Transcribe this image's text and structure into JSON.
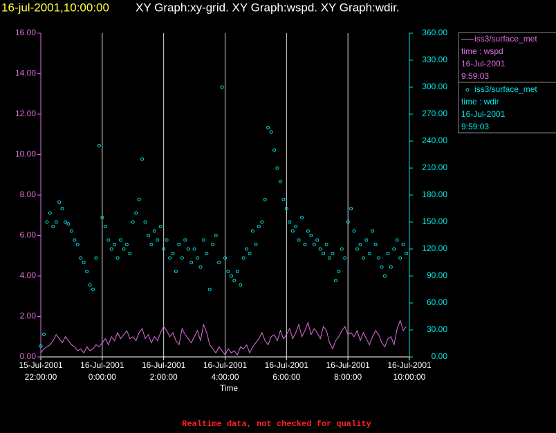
{
  "chart_data": {
    "type": "line+scatter",
    "title": "16-jul-2001,10:00:00",
    "subtitle": "XY Graph:xy-grid.  XY Graph:wspd.  XY Graph:wdir.",
    "x_label": "Time",
    "footer": "Realtime data, not checked for quality",
    "xlim": [
      "2001-07-15T22:00",
      "2001-07-16T10:00"
    ],
    "xticks": [
      {
        "value": "2001-07-15T22:00",
        "label": [
          "15-Jul-2001",
          "22:00:00"
        ]
      },
      {
        "value": "2001-07-16T00:00",
        "label": [
          "16-Jul-2001",
          "0:00:00"
        ]
      },
      {
        "value": "2001-07-16T02:00",
        "label": [
          "16-Jul-2001",
          "2:00:00"
        ]
      },
      {
        "value": "2001-07-16T04:00",
        "label": [
          "16-Jul-2001",
          "4:00:00"
        ]
      },
      {
        "value": "2001-07-16T06:00",
        "label": [
          "16-Jul-2001",
          "6:00:00"
        ]
      },
      {
        "value": "2001-07-16T08:00",
        "label": [
          "16-Jul-2001",
          "8:00:00"
        ]
      },
      {
        "value": "2001-07-16T10:00",
        "label": [
          "16-Jul-2001",
          "10:00:00"
        ]
      }
    ],
    "xgrid": true,
    "ylim": [
      0,
      16
    ],
    "yticks": [
      {
        "value": 0,
        "label": "0.00"
      },
      {
        "value": 2,
        "label": "2.00"
      },
      {
        "value": 4,
        "label": "4.00"
      },
      {
        "value": 6,
        "label": "6.00"
      },
      {
        "value": 8,
        "label": "8.00"
      },
      {
        "value": 10,
        "label": "10.00"
      },
      {
        "value": 12,
        "label": "12.00"
      },
      {
        "value": 14,
        "label": "14.00"
      },
      {
        "value": 16,
        "label": "16.00"
      }
    ],
    "y2lim": [
      0,
      360
    ],
    "y2ticks": [
      {
        "value": 0,
        "label": "0.00"
      },
      {
        "value": 30,
        "label": "30.00"
      },
      {
        "value": 60,
        "label": "60.00"
      },
      {
        "value": 90,
        "label": "90.00"
      },
      {
        "value": 120,
        "label": "120.00"
      },
      {
        "value": 150,
        "label": "150.00"
      },
      {
        "value": 180,
        "label": "180.00"
      },
      {
        "value": 210,
        "label": "210.00"
      },
      {
        "value": 240,
        "label": "240.00"
      },
      {
        "value": 270,
        "label": "270.00"
      },
      {
        "value": 300,
        "label": "300.00"
      },
      {
        "value": 330,
        "label": "330.00"
      },
      {
        "value": 360,
        "label": "360.00"
      }
    ],
    "x": [
      "2001-07-15T22:00",
      "2001-07-15T22:06",
      "2001-07-15T22:12",
      "2001-07-15T22:18",
      "2001-07-15T22:24",
      "2001-07-15T22:30",
      "2001-07-15T22:36",
      "2001-07-15T22:42",
      "2001-07-15T22:48",
      "2001-07-15T22:54",
      "2001-07-15T23:00",
      "2001-07-15T23:06",
      "2001-07-15T23:12",
      "2001-07-15T23:18",
      "2001-07-15T23:24",
      "2001-07-15T23:30",
      "2001-07-15T23:36",
      "2001-07-15T23:42",
      "2001-07-15T23:48",
      "2001-07-15T23:54",
      "2001-07-16T00:00",
      "2001-07-16T00:06",
      "2001-07-16T00:12",
      "2001-07-16T00:18",
      "2001-07-16T00:24",
      "2001-07-16T00:30",
      "2001-07-16T00:36",
      "2001-07-16T00:42",
      "2001-07-16T00:48",
      "2001-07-16T00:54",
      "2001-07-16T01:00",
      "2001-07-16T01:06",
      "2001-07-16T01:12",
      "2001-07-16T01:18",
      "2001-07-16T01:24",
      "2001-07-16T01:30",
      "2001-07-16T01:36",
      "2001-07-16T01:42",
      "2001-07-16T01:48",
      "2001-07-16T01:54",
      "2001-07-16T02:00",
      "2001-07-16T02:06",
      "2001-07-16T02:12",
      "2001-07-16T02:18",
      "2001-07-16T02:24",
      "2001-07-16T02:30",
      "2001-07-16T02:36",
      "2001-07-16T02:42",
      "2001-07-16T02:48",
      "2001-07-16T02:54",
      "2001-07-16T03:00",
      "2001-07-16T03:06",
      "2001-07-16T03:12",
      "2001-07-16T03:18",
      "2001-07-16T03:24",
      "2001-07-16T03:30",
      "2001-07-16T03:36",
      "2001-07-16T03:42",
      "2001-07-16T03:48",
      "2001-07-16T03:54",
      "2001-07-16T04:00",
      "2001-07-16T04:06",
      "2001-07-16T04:12",
      "2001-07-16T04:18",
      "2001-07-16T04:24",
      "2001-07-16T04:30",
      "2001-07-16T04:36",
      "2001-07-16T04:42",
      "2001-07-16T04:48",
      "2001-07-16T04:54",
      "2001-07-16T05:00",
      "2001-07-16T05:06",
      "2001-07-16T05:12",
      "2001-07-16T05:18",
      "2001-07-16T05:24",
      "2001-07-16T05:30",
      "2001-07-16T05:36",
      "2001-07-16T05:42",
      "2001-07-16T05:48",
      "2001-07-16T05:54",
      "2001-07-16T06:00",
      "2001-07-16T06:06",
      "2001-07-16T06:12",
      "2001-07-16T06:18",
      "2001-07-16T06:24",
      "2001-07-16T06:30",
      "2001-07-16T06:36",
      "2001-07-16T06:42",
      "2001-07-16T06:48",
      "2001-07-16T06:54",
      "2001-07-16T07:00",
      "2001-07-16T07:06",
      "2001-07-16T07:12",
      "2001-07-16T07:18",
      "2001-07-16T07:24",
      "2001-07-16T07:30",
      "2001-07-16T07:36",
      "2001-07-16T07:42",
      "2001-07-16T07:48",
      "2001-07-16T07:54",
      "2001-07-16T08:00",
      "2001-07-16T08:06",
      "2001-07-16T08:12",
      "2001-07-16T08:18",
      "2001-07-16T08:24",
      "2001-07-16T08:30",
      "2001-07-16T08:36",
      "2001-07-16T08:42",
      "2001-07-16T08:48",
      "2001-07-16T08:54",
      "2001-07-16T09:00",
      "2001-07-16T09:06",
      "2001-07-16T09:12",
      "2001-07-16T09:18",
      "2001-07-16T09:24",
      "2001-07-16T09:30",
      "2001-07-16T09:36",
      "2001-07-16T09:42",
      "2001-07-16T09:48",
      "2001-07-16T09:54"
    ],
    "series": [
      {
        "name": "iss3/surface_met",
        "legend_lines": [
          "time : wspd",
          "16-Jul-2001",
          "9:59:03"
        ],
        "type": "line",
        "color": "#e070e0",
        "values": [
          0.2,
          0.4,
          0.5,
          0.6,
          0.8,
          1.1,
          0.9,
          0.7,
          1.0,
          0.8,
          0.6,
          0.5,
          0.3,
          0.4,
          0.2,
          0.5,
          0.3,
          0.4,
          0.6,
          0.5,
          0.7,
          0.9,
          0.6,
          1.0,
          0.8,
          1.2,
          0.9,
          1.1,
          1.3,
          0.9,
          1.0,
          0.8,
          1.2,
          1.4,
          0.9,
          1.1,
          0.7,
          1.0,
          0.8,
          1.2,
          1.5,
          1.3,
          1.0,
          1.2,
          0.8,
          0.6,
          1.4,
          1.1,
          0.9,
          0.7,
          1.0,
          1.3,
          0.8,
          1.6,
          1.2,
          0.6,
          0.4,
          0.2,
          0.5,
          0.3,
          0.1,
          0.4,
          0.2,
          0.3,
          0.1,
          0.5,
          0.4,
          0.6,
          0.2,
          0.5,
          0.7,
          0.9,
          1.2,
          0.8,
          0.6,
          1.0,
          1.1,
          0.8,
          1.3,
          0.9,
          1.1,
          1.4,
          0.9,
          1.2,
          1.6,
          1.0,
          1.3,
          1.7,
          1.1,
          1.4,
          1.2,
          0.9,
          1.5,
          1.3,
          0.7,
          0.4,
          0.8,
          1.0,
          1.3,
          1.5,
          1.1,
          1.2,
          1.0,
          1.3,
          0.8,
          1.2,
          0.9,
          0.6,
          1.0,
          1.3,
          1.1,
          0.7,
          0.5,
          0.9,
          1.0,
          0.6,
          1.4,
          1.8,
          1.3,
          1.5
        ]
      },
      {
        "name": "iss3/surface_met",
        "legend_lines": [
          "time : wdir",
          "16-Jul-2001",
          "9:59:03"
        ],
        "type": "scatter",
        "axis": "y2",
        "color": "#00e8e8",
        "values": [
          12,
          25,
          150,
          160,
          145,
          150,
          172,
          165,
          150,
          148,
          140,
          130,
          125,
          110,
          105,
          95,
          80,
          75,
          110,
          235,
          155,
          145,
          130,
          120,
          125,
          110,
          130,
          120,
          125,
          115,
          150,
          160,
          175,
          220,
          150,
          135,
          125,
          140,
          130,
          145,
          120,
          130,
          110,
          115,
          95,
          125,
          110,
          130,
          120,
          105,
          120,
          110,
          100,
          130,
          115,
          75,
          125,
          135,
          105,
          300,
          110,
          95,
          90,
          85,
          95,
          80,
          110,
          120,
          115,
          140,
          125,
          145,
          150,
          175,
          255,
          250,
          230,
          210,
          195,
          175,
          165,
          150,
          140,
          145,
          130,
          155,
          125,
          140,
          135,
          125,
          130,
          120,
          115,
          125,
          110,
          115,
          85,
          95,
          120,
          110,
          150,
          165,
          140,
          120,
          125,
          110,
          130,
          115,
          140,
          125,
          110,
          100,
          90,
          115,
          100,
          120,
          130,
          110,
          125,
          115
        ]
      }
    ]
  }
}
